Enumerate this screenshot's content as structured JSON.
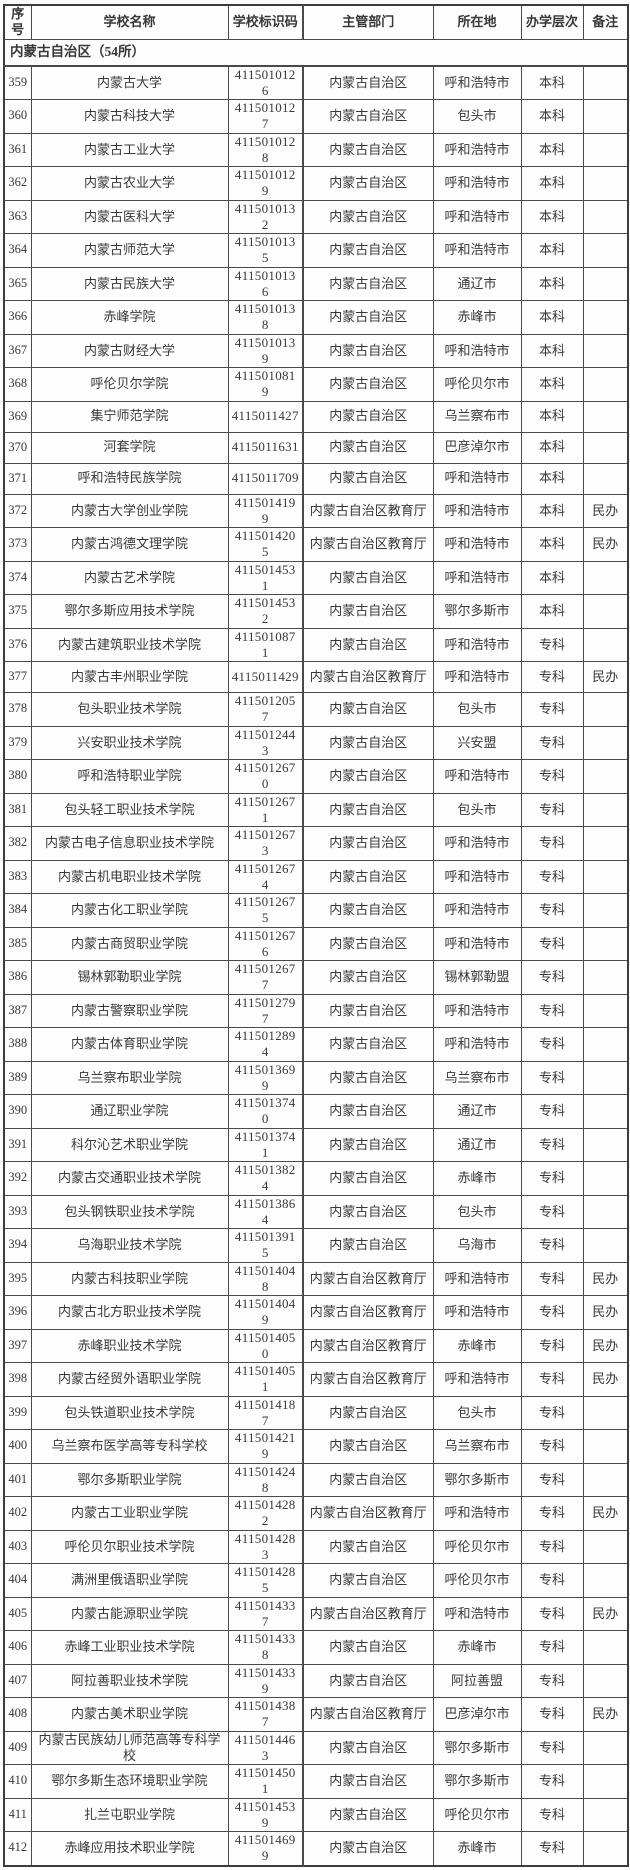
{
  "table": {
    "columns": [
      "序号",
      "学校名称",
      "学校标识码",
      "主管部门",
      "所在地",
      "办学层次",
      "备注"
    ],
    "section_title": "内蒙古自治区（54所）",
    "rows": [
      {
        "no": "359",
        "name": "内蒙古大学",
        "code": "4115010126",
        "dept": "内蒙古自治区",
        "city": "呼和浩特市",
        "level": "本科",
        "note": ""
      },
      {
        "no": "360",
        "name": "内蒙古科技大学",
        "code": "4115010127",
        "dept": "内蒙古自治区",
        "city": "包头市",
        "level": "本科",
        "note": ""
      },
      {
        "no": "361",
        "name": "内蒙古工业大学",
        "code": "4115010128",
        "dept": "内蒙古自治区",
        "city": "呼和浩特市",
        "level": "本科",
        "note": ""
      },
      {
        "no": "362",
        "name": "内蒙古农业大学",
        "code": "4115010129",
        "dept": "内蒙古自治区",
        "city": "呼和浩特市",
        "level": "本科",
        "note": ""
      },
      {
        "no": "363",
        "name": "内蒙古医科大学",
        "code": "4115010132",
        "dept": "内蒙古自治区",
        "city": "呼和浩特市",
        "level": "本科",
        "note": ""
      },
      {
        "no": "364",
        "name": "内蒙古师范大学",
        "code": "4115010135",
        "dept": "内蒙古自治区",
        "city": "呼和浩特市",
        "level": "本科",
        "note": ""
      },
      {
        "no": "365",
        "name": "内蒙古民族大学",
        "code": "4115010136",
        "dept": "内蒙古自治区",
        "city": "通辽市",
        "level": "本科",
        "note": ""
      },
      {
        "no": "366",
        "name": "赤峰学院",
        "code": "4115010138",
        "dept": "内蒙古自治区",
        "city": "赤峰市",
        "level": "本科",
        "note": ""
      },
      {
        "no": "367",
        "name": "内蒙古财经大学",
        "code": "4115010139",
        "dept": "内蒙古自治区",
        "city": "呼和浩特市",
        "level": "本科",
        "note": ""
      },
      {
        "no": "368",
        "name": "呼伦贝尔学院",
        "code": "4115010819",
        "dept": "内蒙古自治区",
        "city": "呼伦贝尔市",
        "level": "本科",
        "note": ""
      },
      {
        "no": "369",
        "name": "集宁师范学院",
        "code": "4115011427",
        "dept": "内蒙古自治区",
        "city": "乌兰察布市",
        "level": "本科",
        "note": ""
      },
      {
        "no": "370",
        "name": "河套学院",
        "code": "4115011631",
        "dept": "内蒙古自治区",
        "city": "巴彦淖尔市",
        "level": "本科",
        "note": ""
      },
      {
        "no": "371",
        "name": "呼和浩特民族学院",
        "code": "4115011709",
        "dept": "内蒙古自治区",
        "city": "呼和浩特市",
        "level": "本科",
        "note": ""
      },
      {
        "no": "372",
        "name": "内蒙古大学创业学院",
        "code": "4115014199",
        "dept": "内蒙古自治区教育厅",
        "city": "呼和浩特市",
        "level": "本科",
        "note": "民办"
      },
      {
        "no": "373",
        "name": "内蒙古鸿德文理学院",
        "code": "4115014205",
        "dept": "内蒙古自治区教育厅",
        "city": "呼和浩特市",
        "level": "本科",
        "note": "民办"
      },
      {
        "no": "374",
        "name": "内蒙古艺术学院",
        "code": "4115014531",
        "dept": "内蒙古自治区",
        "city": "呼和浩特市",
        "level": "本科",
        "note": ""
      },
      {
        "no": "375",
        "name": "鄂尔多斯应用技术学院",
        "code": "4115014532",
        "dept": "内蒙古自治区",
        "city": "鄂尔多斯市",
        "level": "本科",
        "note": ""
      },
      {
        "no": "376",
        "name": "内蒙古建筑职业技术学院",
        "code": "4115010871",
        "dept": "内蒙古自治区",
        "city": "呼和浩特市",
        "level": "专科",
        "note": ""
      },
      {
        "no": "377",
        "name": "内蒙古丰州职业学院",
        "code": "4115011429",
        "dept": "内蒙古自治区教育厅",
        "city": "呼和浩特市",
        "level": "专科",
        "note": "民办"
      },
      {
        "no": "378",
        "name": "包头职业技术学院",
        "code": "4115012057",
        "dept": "内蒙古自治区",
        "city": "包头市",
        "level": "专科",
        "note": ""
      },
      {
        "no": "379",
        "name": "兴安职业技术学院",
        "code": "4115012443",
        "dept": "内蒙古自治区",
        "city": "兴安盟",
        "level": "专科",
        "note": ""
      },
      {
        "no": "380",
        "name": "呼和浩特职业学院",
        "code": "4115012670",
        "dept": "内蒙古自治区",
        "city": "呼和浩特市",
        "level": "专科",
        "note": ""
      },
      {
        "no": "381",
        "name": "包头轻工职业技术学院",
        "code": "4115012671",
        "dept": "内蒙古自治区",
        "city": "包头市",
        "level": "专科",
        "note": ""
      },
      {
        "no": "382",
        "name": "内蒙古电子信息职业技术学院",
        "code": "4115012673",
        "dept": "内蒙古自治区",
        "city": "呼和浩特市",
        "level": "专科",
        "note": ""
      },
      {
        "no": "383",
        "name": "内蒙古机电职业技术学院",
        "code": "4115012674",
        "dept": "内蒙古自治区",
        "city": "呼和浩特市",
        "level": "专科",
        "note": ""
      },
      {
        "no": "384",
        "name": "内蒙古化工职业学院",
        "code": "4115012675",
        "dept": "内蒙古自治区",
        "city": "呼和浩特市",
        "level": "专科",
        "note": ""
      },
      {
        "no": "385",
        "name": "内蒙古商贸职业学院",
        "code": "4115012676",
        "dept": "内蒙古自治区",
        "city": "呼和浩特市",
        "level": "专科",
        "note": ""
      },
      {
        "no": "386",
        "name": "锡林郭勒职业学院",
        "code": "4115012677",
        "dept": "内蒙古自治区",
        "city": "锡林郭勒盟",
        "level": "专科",
        "note": ""
      },
      {
        "no": "387",
        "name": "内蒙古警察职业学院",
        "code": "4115012797",
        "dept": "内蒙古自治区",
        "city": "呼和浩特市",
        "level": "专科",
        "note": ""
      },
      {
        "no": "388",
        "name": "内蒙古体育职业学院",
        "code": "4115012894",
        "dept": "内蒙古自治区",
        "city": "呼和浩特市",
        "level": "专科",
        "note": ""
      },
      {
        "no": "389",
        "name": "乌兰察布职业学院",
        "code": "4115013699",
        "dept": "内蒙古自治区",
        "city": "乌兰察布市",
        "level": "专科",
        "note": ""
      },
      {
        "no": "390",
        "name": "通辽职业学院",
        "code": "4115013740",
        "dept": "内蒙古自治区",
        "city": "通辽市",
        "level": "专科",
        "note": ""
      },
      {
        "no": "391",
        "name": "科尔沁艺术职业学院",
        "code": "4115013741",
        "dept": "内蒙古自治区",
        "city": "通辽市",
        "level": "专科",
        "note": ""
      },
      {
        "no": "392",
        "name": "内蒙古交通职业技术学院",
        "code": "4115013824",
        "dept": "内蒙古自治区",
        "city": "赤峰市",
        "level": "专科",
        "note": ""
      },
      {
        "no": "393",
        "name": "包头钢铁职业技术学院",
        "code": "4115013864",
        "dept": "内蒙古自治区",
        "city": "包头市",
        "level": "专科",
        "note": ""
      },
      {
        "no": "394",
        "name": "乌海职业技术学院",
        "code": "4115013915",
        "dept": "内蒙古自治区",
        "city": "乌海市",
        "level": "专科",
        "note": ""
      },
      {
        "no": "395",
        "name": "内蒙古科技职业学院",
        "code": "4115014048",
        "dept": "内蒙古自治区教育厅",
        "city": "呼和浩特市",
        "level": "专科",
        "note": "民办"
      },
      {
        "no": "396",
        "name": "内蒙古北方职业技术学院",
        "code": "4115014049",
        "dept": "内蒙古自治区教育厅",
        "city": "呼和浩特市",
        "level": "专科",
        "note": "民办"
      },
      {
        "no": "397",
        "name": "赤峰职业技术学院",
        "code": "4115014050",
        "dept": "内蒙古自治区教育厅",
        "city": "赤峰市",
        "level": "专科",
        "note": "民办"
      },
      {
        "no": "398",
        "name": "内蒙古经贸外语职业学院",
        "code": "4115014051",
        "dept": "内蒙古自治区教育厅",
        "city": "呼和浩特市",
        "level": "专科",
        "note": "民办"
      },
      {
        "no": "399",
        "name": "包头铁道职业技术学院",
        "code": "4115014187",
        "dept": "内蒙古自治区",
        "city": "包头市",
        "level": "专科",
        "note": ""
      },
      {
        "no": "400",
        "name": "乌兰察布医学高等专科学校",
        "code": "4115014219",
        "dept": "内蒙古自治区",
        "city": "乌兰察布市",
        "level": "专科",
        "note": ""
      },
      {
        "no": "401",
        "name": "鄂尔多斯职业学院",
        "code": "4115014248",
        "dept": "内蒙古自治区",
        "city": "鄂尔多斯市",
        "level": "专科",
        "note": ""
      },
      {
        "no": "402",
        "name": "内蒙古工业职业学院",
        "code": "4115014282",
        "dept": "内蒙古自治区教育厅",
        "city": "呼和浩特市",
        "level": "专科",
        "note": "民办"
      },
      {
        "no": "403",
        "name": "呼伦贝尔职业技术学院",
        "code": "4115014283",
        "dept": "内蒙古自治区",
        "city": "呼伦贝尔市",
        "level": "专科",
        "note": ""
      },
      {
        "no": "404",
        "name": "满洲里俄语职业学院",
        "code": "4115014285",
        "dept": "内蒙古自治区",
        "city": "呼伦贝尔市",
        "level": "专科",
        "note": ""
      },
      {
        "no": "405",
        "name": "内蒙古能源职业学院",
        "code": "4115014337",
        "dept": "内蒙古自治区教育厅",
        "city": "呼和浩特市",
        "level": "专科",
        "note": "民办"
      },
      {
        "no": "406",
        "name": "赤峰工业职业技术学院",
        "code": "4115014338",
        "dept": "内蒙古自治区",
        "city": "赤峰市",
        "level": "专科",
        "note": ""
      },
      {
        "no": "407",
        "name": "阿拉善职业技术学院",
        "code": "4115014339",
        "dept": "内蒙古自治区",
        "city": "阿拉善盟",
        "level": "专科",
        "note": ""
      },
      {
        "no": "408",
        "name": "内蒙古美术职业学院",
        "code": "4115014387",
        "dept": "内蒙古自治区教育厅",
        "city": "巴彦淖尔市",
        "level": "专科",
        "note": "民办"
      },
      {
        "no": "409",
        "name": "内蒙古民族幼儿师范高等专科学校",
        "code": "4115014463",
        "dept": "内蒙古自治区",
        "city": "鄂尔多斯市",
        "level": "专科",
        "note": ""
      },
      {
        "no": "410",
        "name": "鄂尔多斯生态环境职业学院",
        "code": "4115014501",
        "dept": "内蒙古自治区",
        "city": "鄂尔多斯市",
        "level": "专科",
        "note": ""
      },
      {
        "no": "411",
        "name": "扎兰屯职业学院",
        "code": "4115014539",
        "dept": "内蒙古自治区",
        "city": "呼伦贝尔市",
        "level": "专科",
        "note": ""
      },
      {
        "no": "412",
        "name": "赤峰应用技术职业学院",
        "code": "4115014699",
        "dept": "内蒙古自治区",
        "city": "赤峰市",
        "level": "专科",
        "note": ""
      }
    ]
  },
  "colors": {
    "background": "#fdfdfd",
    "border": "#4a4a4a",
    "text": "#383838"
  }
}
